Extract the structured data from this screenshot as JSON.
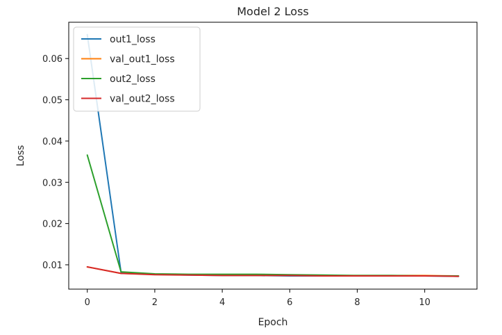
{
  "chart_data": {
    "type": "line",
    "title": "Model 2 Loss",
    "xlabel": "Epoch",
    "ylabel": "Loss",
    "x": [
      0,
      1,
      2,
      3,
      4,
      5,
      6,
      7,
      8,
      9,
      10,
      11
    ],
    "xlim": [
      -0.55,
      11.55
    ],
    "ylim": [
      0.0041,
      0.0688
    ],
    "xticks": [
      0,
      2,
      4,
      6,
      8,
      10
    ],
    "yticks": [
      0.01,
      0.02,
      0.03,
      0.04,
      0.05,
      0.06
    ],
    "ytick_labels": [
      "0.01",
      "0.02",
      "0.03",
      "0.04",
      "0.05",
      "0.06"
    ],
    "grid": false,
    "legend_position": "top-left",
    "series": [
      {
        "name": "out1_loss",
        "color": "#1f77b4",
        "values": [
          0.0658,
          0.0082,
          0.0077,
          0.0075,
          0.0074,
          0.0074,
          0.0073,
          0.0073,
          0.0073,
          0.0073,
          0.0073,
          0.0072
        ]
      },
      {
        "name": "val_out1_loss",
        "color": "#ff7f0e",
        "values": [
          0.0095,
          0.0079,
          0.0077,
          0.0076,
          0.0075,
          0.0075,
          0.0075,
          0.0074,
          0.0074,
          0.0074,
          0.0074,
          0.0073
        ]
      },
      {
        "name": "out2_loss",
        "color": "#2ca02c",
        "values": [
          0.0366,
          0.0083,
          0.0078,
          0.0077,
          0.0077,
          0.0077,
          0.0076,
          0.0075,
          0.0074,
          0.0074,
          0.0073,
          0.0073
        ]
      },
      {
        "name": "val_out2_loss",
        "color": "#d62728",
        "values": [
          0.0095,
          0.0079,
          0.0076,
          0.0075,
          0.0074,
          0.0074,
          0.0074,
          0.0073,
          0.0073,
          0.0073,
          0.0073,
          0.0072
        ]
      }
    ]
  }
}
